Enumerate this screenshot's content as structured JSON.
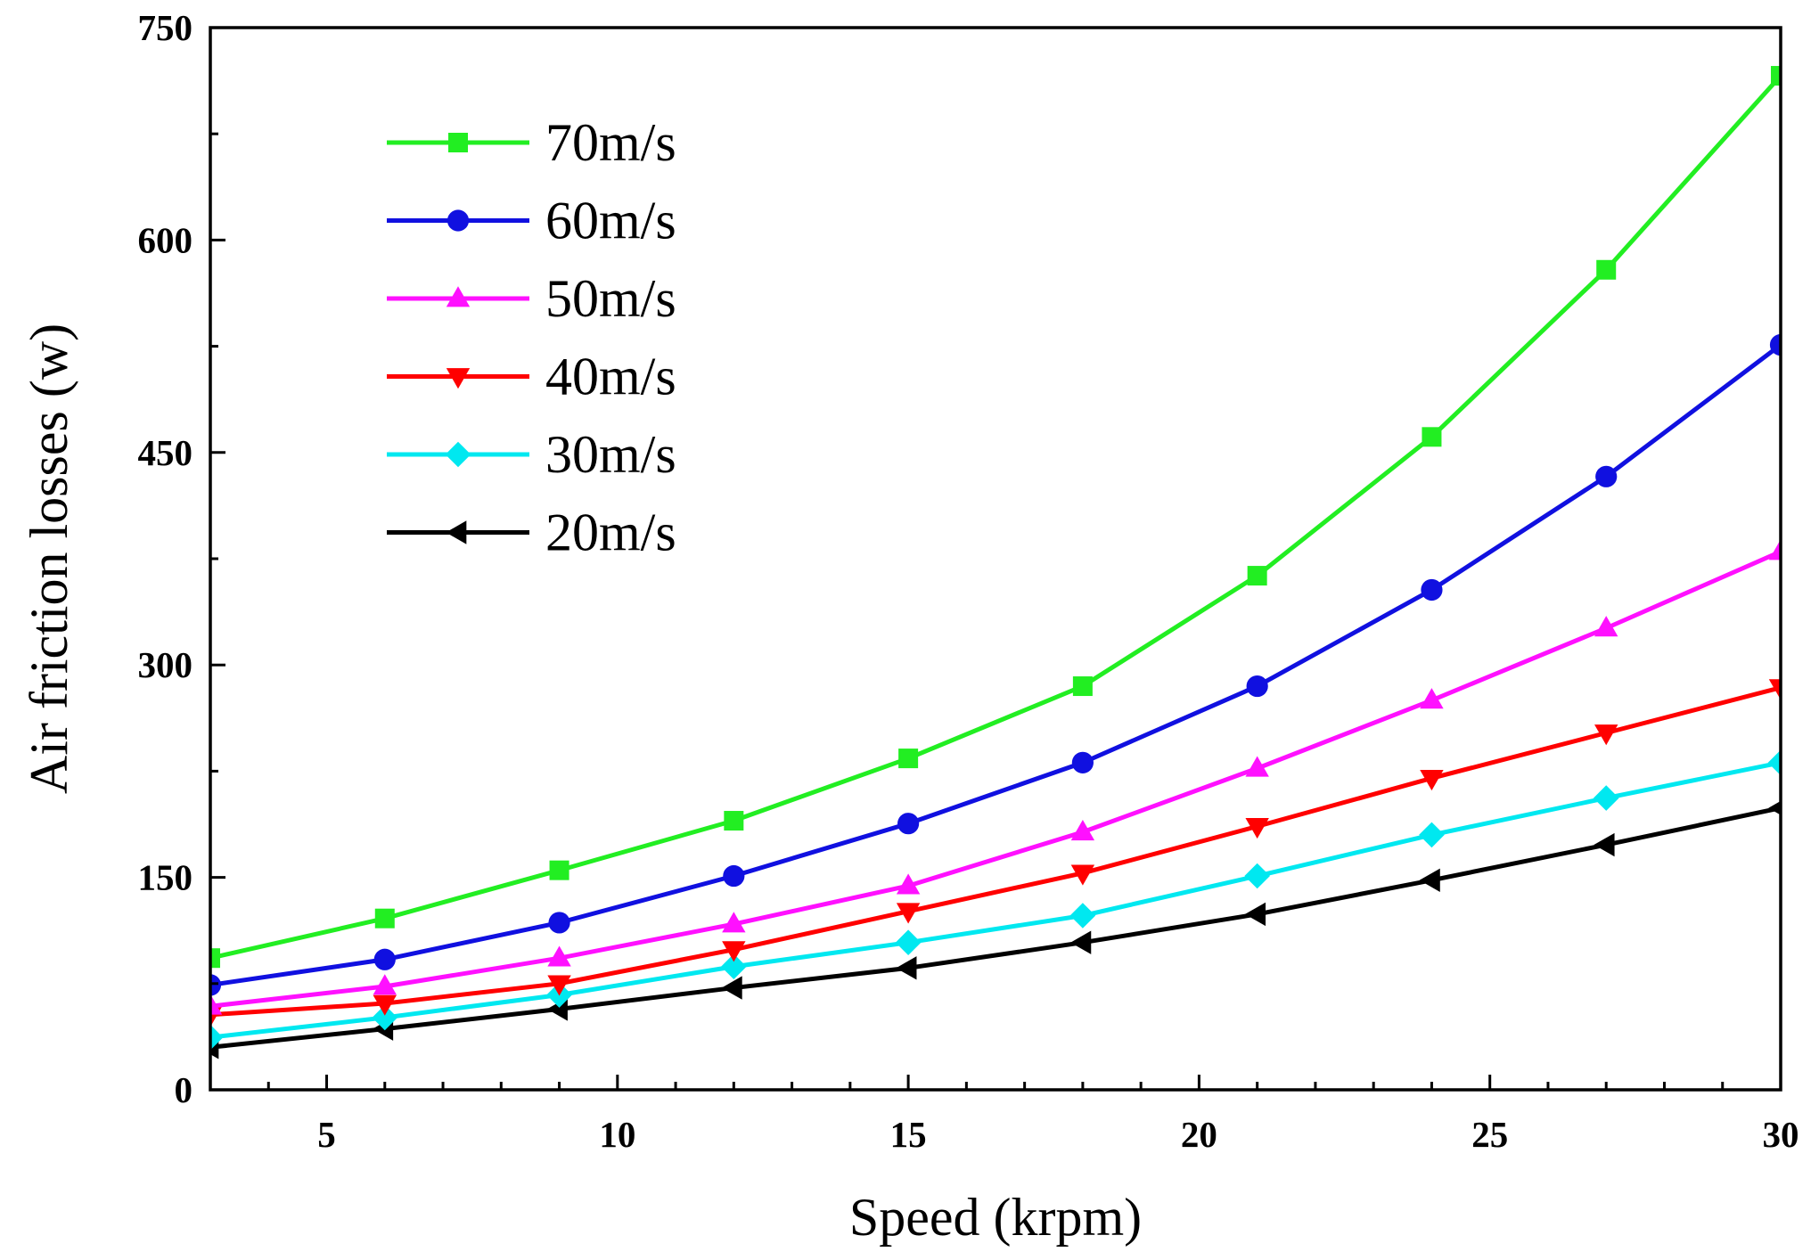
{
  "chart_data": {
    "type": "line",
    "xlabel": "Speed (krpm)",
    "ylabel": "Air friction losses (w)",
    "xlim": [
      3,
      30
    ],
    "ylim": [
      0,
      750
    ],
    "xticks": [
      5,
      10,
      15,
      20,
      25,
      30
    ],
    "yticks": [
      0,
      150,
      300,
      450,
      600,
      750
    ],
    "x_minor_step": 1,
    "y_minor_step": 75,
    "grid": false,
    "legend_position": "top-left",
    "x": [
      3,
      6,
      9,
      12,
      15,
      18,
      21,
      24,
      27,
      30
    ],
    "series": [
      {
        "name": "70m/s",
        "color": "#22ee22",
        "marker": "square",
        "values": [
          93,
          121,
          155,
          190,
          234,
          285,
          363,
          461,
          579,
          716
        ]
      },
      {
        "name": "60m/s",
        "color": "#1010e0",
        "marker": "circle",
        "values": [
          74,
          92,
          118,
          151,
          188,
          231,
          285,
          353,
          433,
          526
        ]
      },
      {
        "name": "50m/s",
        "color": "#ff10ff",
        "marker": "triangle-up",
        "values": [
          59,
          73,
          93,
          117,
          144,
          182,
          227,
          275,
          326,
          380
        ]
      },
      {
        "name": "40m/s",
        "color": "#ff0000",
        "marker": "triangle-down",
        "values": [
          53,
          61,
          75,
          99,
          126,
          153,
          186,
          220,
          252,
          284
        ]
      },
      {
        "name": "30m/s",
        "color": "#00e8f0",
        "marker": "diamond",
        "values": [
          37,
          51,
          67,
          87,
          104,
          123,
          151,
          180,
          206,
          231
        ]
      },
      {
        "name": "20m/s",
        "color": "#000000",
        "marker": "triangle-left",
        "values": [
          30,
          43,
          57,
          72,
          86,
          104,
          124,
          148,
          173,
          199
        ]
      }
    ]
  }
}
